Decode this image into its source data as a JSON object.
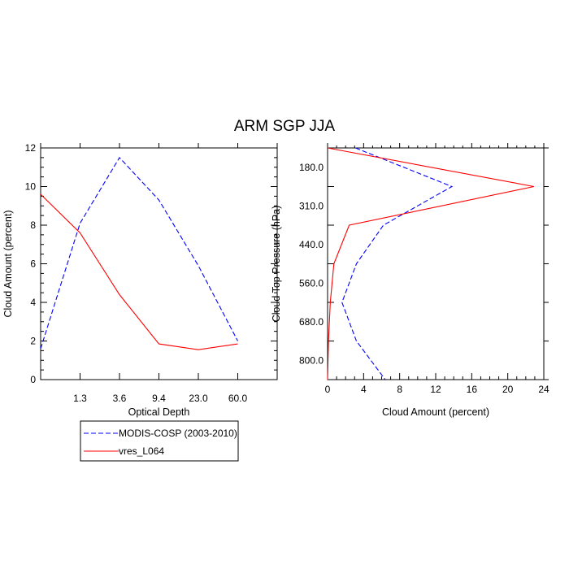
{
  "figure": {
    "title": "ARM SGP JJA"
  },
  "legend": {
    "placement": "bottom-left, below left panel",
    "entries": [
      {
        "label": "MODIS-COSP (2003-2010)",
        "color": "#0000ff",
        "style": "dashed"
      },
      {
        "label": "vres_L064",
        "color": "#ff0000",
        "style": "solid"
      }
    ]
  },
  "chart_data": [
    {
      "type": "line",
      "title": "",
      "xlabel": "Optical Depth",
      "ylabel": "Cloud Amount (percent)",
      "x_tick_labels": [
        "1.3",
        "3.6",
        "9.4",
        "23.0",
        "60.0"
      ],
      "y_tick_labels": [
        "0",
        "2",
        "4",
        "6",
        "8",
        "10",
        "12"
      ],
      "ylim": [
        0,
        12
      ],
      "grid": false,
      "x_bins": [
        1,
        2,
        3,
        4,
        5,
        6,
        7
      ],
      "series": [
        {
          "name": "MODIS-COSP (2003-2010)",
          "color": "#0000ff",
          "style": "dashed",
          "values": [
            1.6,
            8.1,
            11.5,
            9.3,
            5.9,
            2.0
          ]
        },
        {
          "name": "vres_L064",
          "color": "#ff0000",
          "style": "solid",
          "values": [
            9.6,
            7.6,
            4.4,
            1.85,
            1.55,
            1.85
          ]
        }
      ]
    },
    {
      "type": "line",
      "title": "",
      "xlabel": "Cloud Amount (percent)",
      "ylabel": "Cloud Top Pressure (hPa)",
      "x_tick_labels": [
        "0",
        "4",
        "8",
        "12",
        "16",
        "20",
        "24"
      ],
      "xlim": [
        0,
        24
      ],
      "y_tick_labels": [
        "180.0",
        "310.0",
        "440.0",
        "560.0",
        "680.0",
        "800.0"
      ],
      "y_reversed": true,
      "grid": false,
      "y_levels": [
        1,
        2,
        3,
        4,
        5,
        6,
        7
      ],
      "series": [
        {
          "name": "MODIS-COSP (2003-2010)",
          "color": "#0000ff",
          "style": "dashed",
          "values": [
            3.1,
            13.8,
            6.2,
            3.2,
            1.6,
            3.2,
            6.4
          ]
        },
        {
          "name": "vres_L064",
          "color": "#ff0000",
          "style": "solid",
          "values": [
            0.0,
            22.9,
            2.4,
            0.7,
            0.3,
            0.1,
            0.0
          ]
        }
      ]
    }
  ]
}
